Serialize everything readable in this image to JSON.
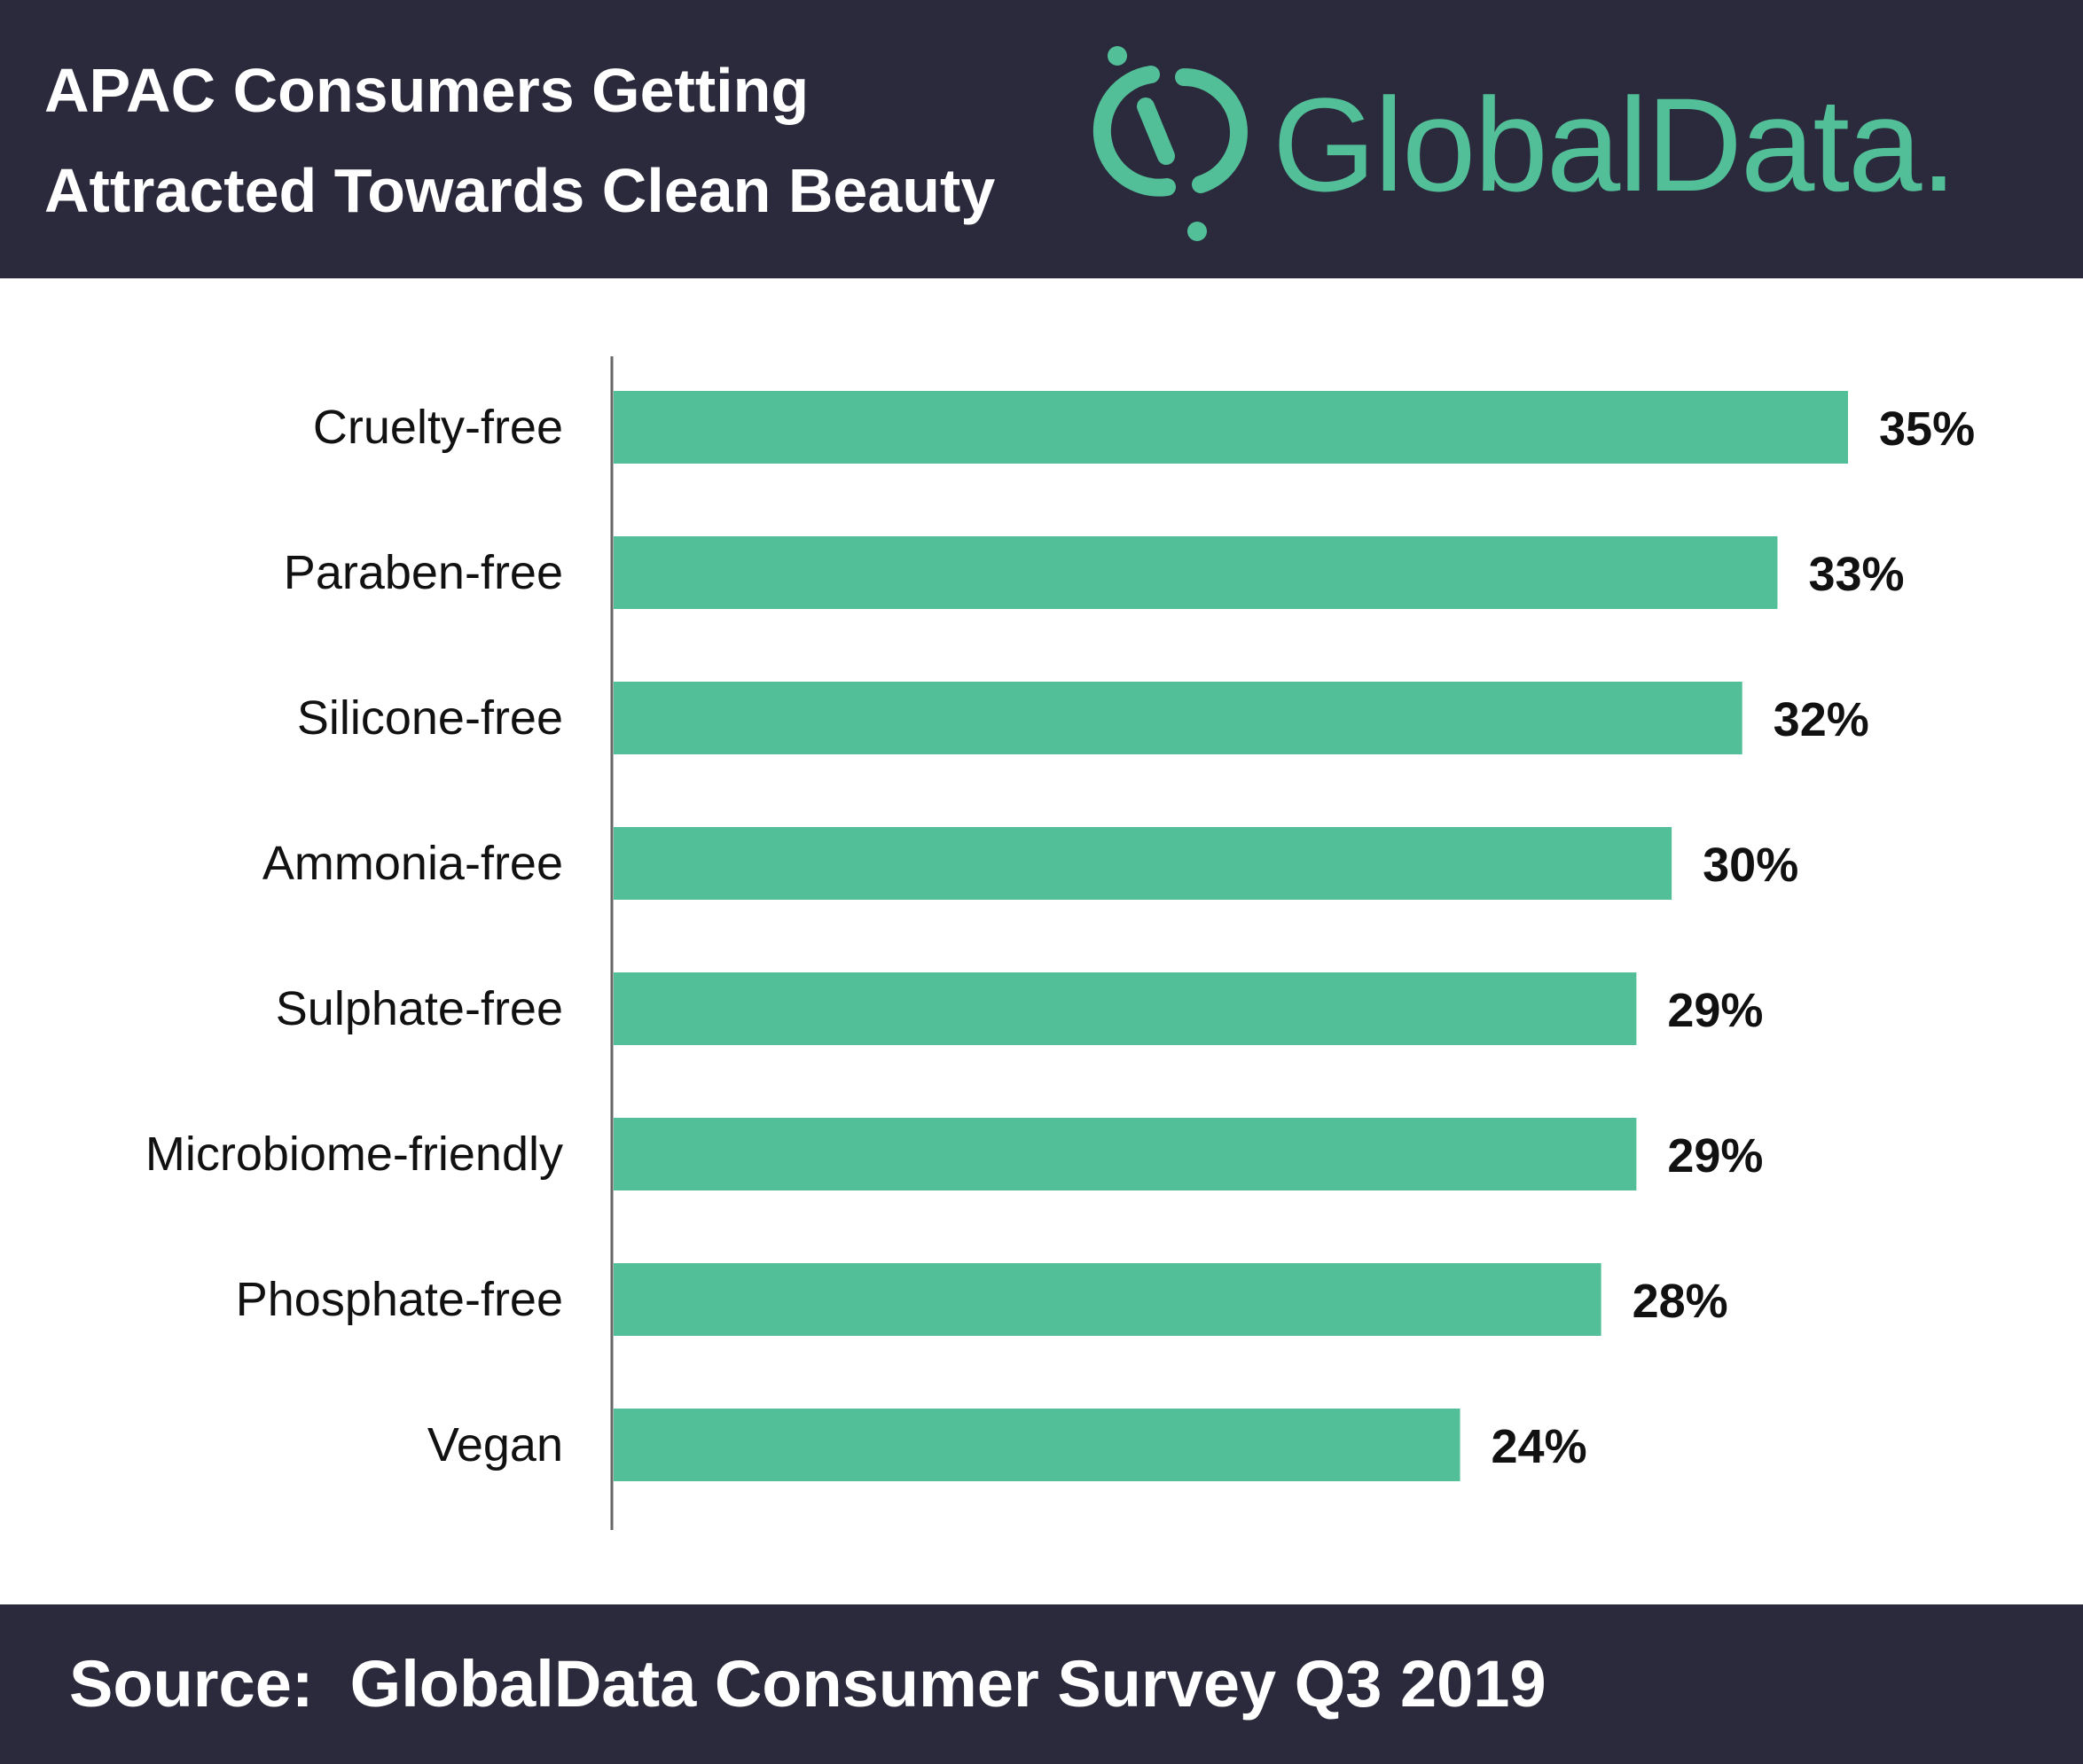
{
  "header": {
    "title_line1": "APAC Consumers Getting",
    "title_line2": "Attracted Towards Clean Beauty",
    "logo_text": "GlobalData.",
    "background_color": "#2b2a3c",
    "brand_color": "#52bf98"
  },
  "footer": {
    "source": "Source:  GlobalData Consumer Survey Q3 2019"
  },
  "chart_data": {
    "type": "bar",
    "orientation": "horizontal",
    "title": "APAC Consumers Getting Attracted Towards Clean Beauty",
    "xlabel": "",
    "ylabel": "",
    "categories": [
      "Cruelty-free",
      "Paraben-free",
      "Silicone-free",
      "Ammonia-free",
      "Sulphate-free",
      "Microbiome-friendly",
      "Phosphate-free",
      "Vegan"
    ],
    "values": [
      35,
      33,
      32,
      30,
      29,
      29,
      28,
      24
    ],
    "value_labels": [
      "35%",
      "33%",
      "32%",
      "30%",
      "29%",
      "29%",
      "28%",
      "24%"
    ],
    "unit": "%",
    "xlim": [
      0,
      35
    ],
    "grid": false,
    "bar_color": "#52bf98"
  }
}
